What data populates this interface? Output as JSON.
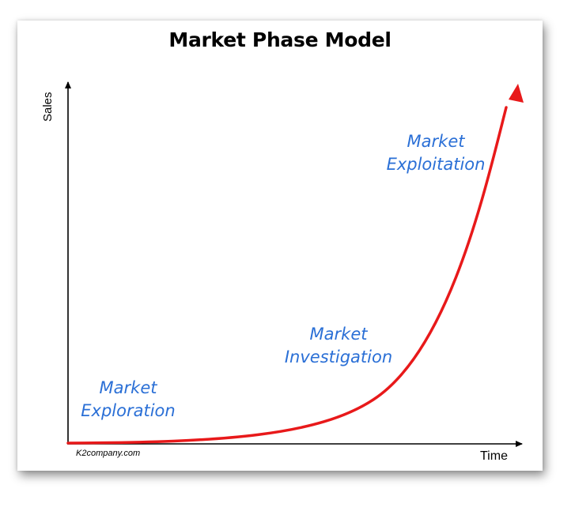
{
  "title": "Market Phase Model",
  "axes": {
    "y_label": "Sales",
    "x_label": "Time"
  },
  "credit": "K2company.com",
  "phases": [
    {
      "line1": "Market",
      "line2": "Exploration"
    },
    {
      "line1": "Market",
      "line2": "Investigation"
    },
    {
      "line1": "Market",
      "line2": "Exploitation"
    }
  ],
  "colors": {
    "curve": "#e8191a",
    "phase_text": "#2a6fd6",
    "axis": "#000000"
  }
}
